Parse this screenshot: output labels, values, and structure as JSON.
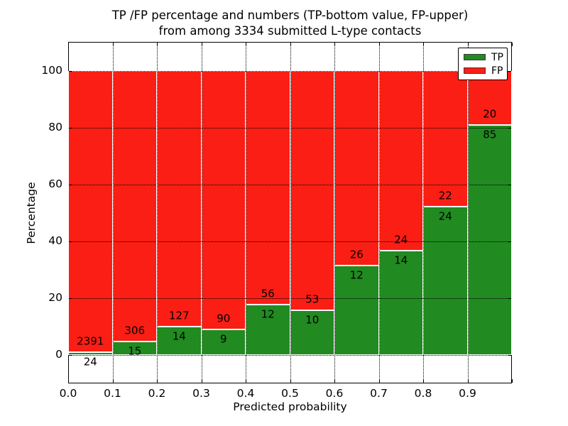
{
  "chart_data": {
    "type": "bar",
    "stacked": true,
    "title_lines": [
      "TP /FP percentage and numbers (TP-bottom value, FP-upper)",
      "from among 3334 submitted L-type contacts"
    ],
    "xlabel": "Predicted probability",
    "ylabel": "Percentage",
    "total_submitted": 3334,
    "x_bin_edges": [
      0.0,
      0.1,
      0.2,
      0.3,
      0.4,
      0.5,
      0.6,
      0.7,
      0.8,
      0.9,
      1.0
    ],
    "xtick_labels": [
      "0.0",
      "0.1",
      "0.2",
      "0.3",
      "0.4",
      "0.5",
      "0.6",
      "0.7",
      "0.8",
      "0.9"
    ],
    "ytick_values": [
      0,
      20,
      40,
      60,
      80,
      100
    ],
    "ylim": [
      -10,
      110
    ],
    "grid": "dotted",
    "legend": {
      "position": "upper-right",
      "entries": [
        "TP",
        "FP"
      ]
    },
    "series": [
      {
        "name": "TP",
        "color": "#218a21",
        "counts": [
          24,
          15,
          14,
          9,
          12,
          10,
          12,
          14,
          24,
          85
        ]
      },
      {
        "name": "FP",
        "color": "#fa1e14",
        "counts": [
          2391,
          306,
          127,
          90,
          56,
          53,
          26,
          24,
          22,
          20
        ]
      }
    ],
    "tp_percent": [
      0.99,
      4.67,
      9.93,
      9.09,
      17.65,
      15.87,
      31.58,
      36.84,
      52.17,
      80.95
    ]
  }
}
